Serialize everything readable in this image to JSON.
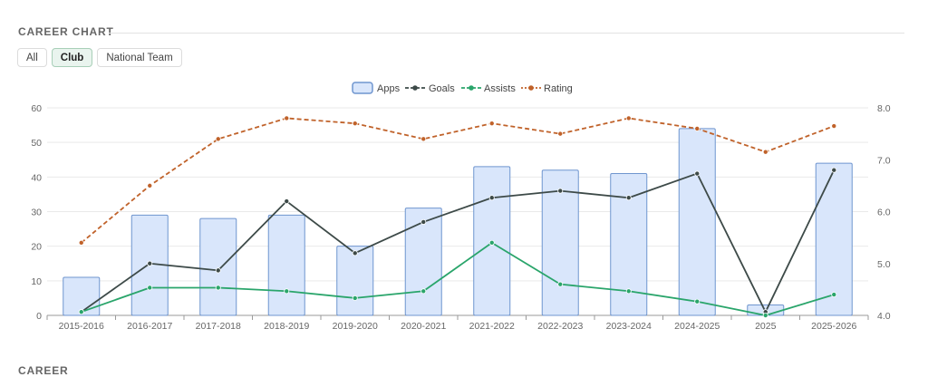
{
  "header": {
    "title": "CAREER CHART"
  },
  "tabs": [
    {
      "label": "All",
      "active": false
    },
    {
      "label": "Club",
      "active": true
    },
    {
      "label": "National Team",
      "active": false
    }
  ],
  "next_section": {
    "title": "CAREER"
  },
  "colors": {
    "apps_fill": "#d9e6fb",
    "apps_stroke": "#6f95cf",
    "goals": "#3d4a48",
    "assists": "#2aa56b",
    "rating": "#c0622a",
    "grid": "#e9e9e9"
  },
  "chart_data": {
    "type": "bar",
    "categories": [
      "2015-2016",
      "2016-2017",
      "2017-2018",
      "2018-2019",
      "2019-2020",
      "2020-2021",
      "2021-2022",
      "2022-2023",
      "2023-2024",
      "2024-2025",
      "2025",
      "2025-2026"
    ],
    "series": [
      {
        "name": "Apps",
        "kind": "bar",
        "axis": "left",
        "values": [
          11,
          29,
          28,
          29,
          20,
          31,
          43,
          42,
          41,
          54,
          3,
          44
        ]
      },
      {
        "name": "Goals",
        "kind": "line",
        "axis": "left",
        "values": [
          1,
          15,
          13,
          33,
          18,
          27,
          34,
          36,
          34,
          41,
          1,
          42
        ]
      },
      {
        "name": "Assists",
        "kind": "line",
        "axis": "left",
        "values": [
          1,
          8,
          8,
          7,
          5,
          7,
          21,
          9,
          7,
          4,
          0,
          6
        ]
      },
      {
        "name": "Rating",
        "kind": "line-dashed",
        "axis": "right",
        "values": [
          5.4,
          6.5,
          7.4,
          7.8,
          7.7,
          7.4,
          7.7,
          7.5,
          7.8,
          7.6,
          7.15,
          7.65
        ]
      }
    ],
    "y_left": {
      "min": 0,
      "max": 60,
      "ticks": [
        "0",
        "10",
        "20",
        "30",
        "40",
        "50",
        "60"
      ]
    },
    "y_right": {
      "min": 4.0,
      "max": 8.0,
      "ticks": [
        "4.0",
        "5.0",
        "6.0",
        "7.0",
        "8.0"
      ]
    },
    "grid": true,
    "legend_position": "top-center"
  }
}
